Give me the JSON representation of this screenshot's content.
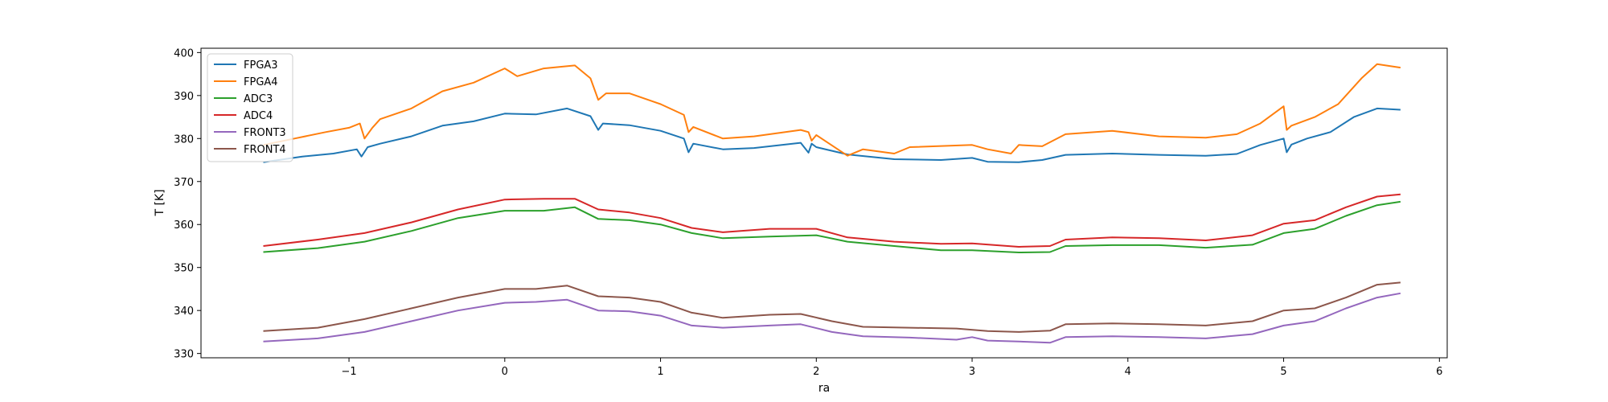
{
  "chart_data": {
    "type": "line",
    "title": "",
    "xlabel": "ra",
    "ylabel": "T [K]",
    "xlim": [
      -1.95,
      6.05
    ],
    "ylim": [
      329,
      401
    ],
    "xticks": [
      -1,
      0,
      1,
      2,
      3,
      4,
      5,
      6
    ],
    "yticks": [
      330,
      340,
      350,
      360,
      370,
      380,
      390,
      400
    ],
    "xtick_labels": [
      "−1",
      "0",
      "1",
      "2",
      "3",
      "4",
      "5",
      "6"
    ],
    "ytick_labels": [
      "330",
      "340",
      "350",
      "360",
      "370",
      "380",
      "390",
      "400"
    ],
    "grid": false,
    "legend": "upper-left",
    "series": [
      {
        "name": "FPGA3",
        "color": "#1f77b4",
        "x": [
          -1.55,
          -1.3,
          -1.1,
          -0.95,
          -0.92,
          -0.88,
          -0.8,
          -0.6,
          -0.4,
          -0.2,
          0.0,
          0.2,
          0.4,
          0.55,
          0.6,
          0.63,
          0.8,
          1.0,
          1.15,
          1.18,
          1.21,
          1.4,
          1.6,
          1.9,
          1.95,
          1.97,
          2.0,
          2.2,
          2.5,
          2.8,
          3.0,
          3.1,
          3.3,
          3.45,
          3.6,
          3.9,
          4.2,
          4.5,
          4.7,
          4.85,
          5.0,
          5.02,
          5.05,
          5.15,
          5.3,
          5.45,
          5.6,
          5.75
        ],
        "y": [
          374.5,
          375.8,
          376.5,
          377.5,
          375.8,
          378.0,
          378.8,
          380.5,
          383.0,
          384.0,
          385.8,
          385.6,
          387.0,
          385.2,
          382.0,
          383.5,
          383.1,
          381.8,
          380.0,
          376.8,
          378.8,
          377.5,
          377.8,
          379.0,
          376.7,
          378.8,
          378.0,
          376.3,
          375.2,
          375.0,
          375.5,
          374.6,
          374.5,
          375.0,
          376.2,
          376.5,
          376.2,
          376.0,
          376.4,
          378.5,
          380.0,
          376.8,
          378.6,
          380.0,
          381.5,
          385.0,
          387.0,
          386.7
        ]
      },
      {
        "name": "FPGA4",
        "color": "#ff7f0e",
        "x": [
          -1.55,
          -1.35,
          -1.15,
          -1.0,
          -0.93,
          -0.9,
          -0.85,
          -0.8,
          -0.6,
          -0.4,
          -0.2,
          0.0,
          0.08,
          0.25,
          0.45,
          0.55,
          0.6,
          0.65,
          0.8,
          1.0,
          1.15,
          1.18,
          1.21,
          1.4,
          1.6,
          1.9,
          1.95,
          1.97,
          2.0,
          2.2,
          2.3,
          2.5,
          2.6,
          3.0,
          3.1,
          3.25,
          3.3,
          3.45,
          3.6,
          3.9,
          4.2,
          4.5,
          4.7,
          4.85,
          5.0,
          5.02,
          5.05,
          5.2,
          5.35,
          5.5,
          5.6,
          5.75
        ],
        "y": [
          378.5,
          380.0,
          381.5,
          382.5,
          383.5,
          380.0,
          382.5,
          384.5,
          387.0,
          391.0,
          393.0,
          396.3,
          394.5,
          396.3,
          397.0,
          394.0,
          389.0,
          390.5,
          390.5,
          388.0,
          385.5,
          381.5,
          382.7,
          380.0,
          380.5,
          382.0,
          381.5,
          379.5,
          380.8,
          376.0,
          377.5,
          376.5,
          378.0,
          378.5,
          377.5,
          376.5,
          378.5,
          378.2,
          381.0,
          381.8,
          380.5,
          380.2,
          381.0,
          383.5,
          387.5,
          382.0,
          383.0,
          385.0,
          388.0,
          394.0,
          397.3,
          396.5
        ]
      },
      {
        "name": "ADC3",
        "color": "#2ca02c",
        "x": [
          -1.55,
          -1.2,
          -0.9,
          -0.6,
          -0.3,
          0.0,
          0.25,
          0.45,
          0.6,
          0.8,
          1.0,
          1.2,
          1.4,
          1.7,
          2.0,
          2.2,
          2.5,
          2.8,
          3.0,
          3.3,
          3.5,
          3.6,
          3.9,
          4.2,
          4.5,
          4.8,
          5.0,
          5.2,
          5.4,
          5.6,
          5.75
        ],
        "y": [
          353.6,
          354.5,
          356.0,
          358.5,
          361.5,
          363.2,
          363.2,
          364.0,
          361.3,
          361.0,
          360.0,
          358.0,
          356.8,
          357.2,
          357.5,
          356.0,
          355.0,
          354.0,
          354.0,
          353.5,
          353.6,
          355.0,
          355.2,
          355.2,
          354.6,
          355.3,
          358.0,
          359.0,
          362.0,
          364.5,
          365.3
        ]
      },
      {
        "name": "ADC4",
        "color": "#d62728",
        "x": [
          -1.55,
          -1.2,
          -0.9,
          -0.6,
          -0.3,
          0.0,
          0.25,
          0.45,
          0.6,
          0.8,
          1.0,
          1.2,
          1.4,
          1.7,
          2.0,
          2.2,
          2.5,
          2.8,
          3.0,
          3.3,
          3.5,
          3.6,
          3.9,
          4.2,
          4.5,
          4.8,
          5.0,
          5.2,
          5.4,
          5.6,
          5.75
        ],
        "y": [
          355.0,
          356.5,
          358.0,
          360.5,
          363.5,
          365.8,
          366.0,
          366.0,
          363.5,
          362.8,
          361.5,
          359.2,
          358.2,
          359.0,
          359.0,
          357.0,
          356.0,
          355.5,
          355.6,
          354.8,
          355.0,
          356.5,
          357.0,
          356.8,
          356.3,
          357.5,
          360.2,
          361.0,
          364.0,
          366.5,
          367.0
        ]
      },
      {
        "name": "FRONT3",
        "color": "#9467bd",
        "x": [
          -1.55,
          -1.2,
          -0.9,
          -0.6,
          -0.3,
          0.0,
          0.2,
          0.4,
          0.6,
          0.8,
          1.0,
          1.2,
          1.4,
          1.7,
          1.9,
          2.1,
          2.3,
          2.6,
          2.9,
          3.0,
          3.1,
          3.3,
          3.5,
          3.6,
          3.9,
          4.2,
          4.5,
          4.8,
          5.0,
          5.2,
          5.4,
          5.6,
          5.75
        ],
        "y": [
          332.8,
          333.5,
          335.0,
          337.5,
          340.0,
          341.8,
          342.0,
          342.5,
          340.0,
          339.8,
          338.8,
          336.5,
          336.0,
          336.5,
          336.8,
          335.0,
          334.0,
          333.7,
          333.2,
          333.8,
          333.0,
          332.8,
          332.5,
          333.8,
          334.0,
          333.8,
          333.5,
          334.5,
          336.5,
          337.5,
          340.5,
          343.0,
          344.0
        ]
      },
      {
        "name": "FRONT4",
        "color": "#8c564b",
        "x": [
          -1.55,
          -1.2,
          -0.9,
          -0.6,
          -0.3,
          0.0,
          0.2,
          0.4,
          0.6,
          0.8,
          1.0,
          1.2,
          1.4,
          1.7,
          1.9,
          2.1,
          2.3,
          2.6,
          2.9,
          3.1,
          3.3,
          3.5,
          3.6,
          3.9,
          4.2,
          4.5,
          4.8,
          5.0,
          5.2,
          5.4,
          5.6,
          5.75
        ],
        "y": [
          335.2,
          336.0,
          338.0,
          340.5,
          343.0,
          345.0,
          345.0,
          345.8,
          343.3,
          343.0,
          342.0,
          339.5,
          338.3,
          339.0,
          339.2,
          337.5,
          336.2,
          336.0,
          335.8,
          335.2,
          335.0,
          335.3,
          336.8,
          337.0,
          336.8,
          336.5,
          337.5,
          340.0,
          340.5,
          343.0,
          346.0,
          346.5
        ]
      }
    ]
  }
}
